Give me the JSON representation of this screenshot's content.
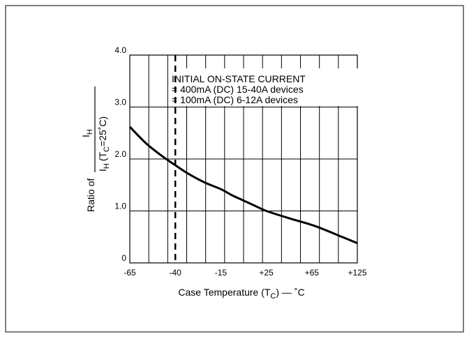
{
  "chart_data": {
    "type": "line",
    "xlabel": {
      "main": "Case Temperature (T",
      "sub": "C",
      "tail": ") — ˚C"
    },
    "ylabel": {
      "prefix": "Ratio of",
      "numerator_main": "I",
      "numerator_sub": "H",
      "denominator_main": "I",
      "denominator_sub": "H",
      "denominator_tail_open": "(T",
      "denominator_tail_sub": "C",
      "denominator_tail_close": "=25˚C)"
    },
    "x_ticks": [
      {
        "label": "-65",
        "value": -65
      },
      {
        "label": "-40",
        "value": -40
      },
      {
        "label": "-15",
        "value": -15
      },
      {
        "label": "+25",
        "value": 25
      },
      {
        "label": "+65",
        "value": 65
      },
      {
        "label": "+125",
        "value": 125
      }
    ],
    "y_ticks": [
      {
        "label": "0",
        "value": 0
      },
      {
        "label": "1.0",
        "value": 1.0
      },
      {
        "label": "2.0",
        "value": 2.0
      },
      {
        "label": "3.0",
        "value": 3.0
      },
      {
        "label": "4.0",
        "value": 4.0
      }
    ],
    "ylim": [
      0,
      4
    ],
    "grid": true,
    "reference_line_x": -40,
    "annotation": [
      "INITIAL ON-STATE CURRENT",
      "= 400mA (DC) 15-40A devices",
      "= 100mA (DC) 6-12A devices"
    ],
    "series": [
      {
        "points": [
          {
            "x": -65,
            "y": 2.62
          },
          {
            "x": -56,
            "y": 2.3
          },
          {
            "x": -47,
            "y": 2.05
          },
          {
            "x": -40,
            "y": 1.88
          },
          {
            "x": -33,
            "y": 1.72
          },
          {
            "x": -24,
            "y": 1.55
          },
          {
            "x": -15,
            "y": 1.42
          },
          {
            "x": -5,
            "y": 1.3
          },
          {
            "x": 5,
            "y": 1.2
          },
          {
            "x": 15,
            "y": 1.1
          },
          {
            "x": 25,
            "y": 1.0
          },
          {
            "x": 45,
            "y": 0.86
          },
          {
            "x": 65,
            "y": 0.73
          },
          {
            "x": 85,
            "y": 0.62
          },
          {
            "x": 105,
            "y": 0.5
          },
          {
            "x": 125,
            "y": 0.38
          }
        ]
      }
    ]
  }
}
